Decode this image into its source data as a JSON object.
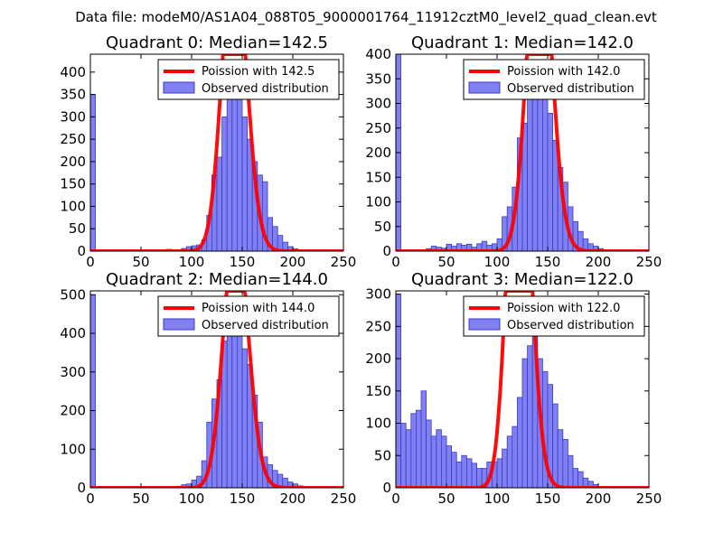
{
  "figure_title": "Data file: modeM0/AS1A04_088T05_9000001764_11912cztM0_level2_quad_clean.evt",
  "colors": {
    "bar_fill": "#8080f0",
    "bar_edge": "#3a3ad0",
    "model_line": "#ff0000"
  },
  "chart_data": [
    {
      "type": "bar",
      "title": "Quadrant 0: Median=142.5",
      "xlim": [
        0,
        250
      ],
      "ylim": [
        0,
        440
      ],
      "xticks": [
        0,
        50,
        100,
        150,
        200,
        250
      ],
      "yticks": [
        0,
        50,
        100,
        150,
        200,
        250,
        300,
        350,
        400
      ],
      "legend": {
        "placement": "top-right",
        "line_label": "Poission with 142.5",
        "bar_label": "Observed distribution"
      },
      "bin_width": 5,
      "bins": [
        [
          0,
          350
        ],
        [
          75,
          4
        ],
        [
          80,
          2
        ],
        [
          85,
          2
        ],
        [
          90,
          6
        ],
        [
          95,
          10
        ],
        [
          100,
          12
        ],
        [
          105,
          14
        ],
        [
          110,
          25
        ],
        [
          115,
          80
        ],
        [
          120,
          170
        ],
        [
          125,
          210
        ],
        [
          130,
          300
        ],
        [
          135,
          360
        ],
        [
          140,
          380
        ],
        [
          145,
          390
        ],
        [
          150,
          300
        ],
        [
          155,
          250
        ],
        [
          160,
          200
        ],
        [
          165,
          170
        ],
        [
          170,
          155
        ],
        [
          175,
          75
        ],
        [
          180,
          55
        ],
        [
          185,
          35
        ],
        [
          190,
          20
        ],
        [
          195,
          10
        ],
        [
          200,
          5
        ]
      ],
      "poisson_mean": 142.5,
      "poisson_total": 4100
    },
    {
      "type": "bar",
      "title": "Quadrant 1: Median=142.0",
      "xlim": [
        0,
        250
      ],
      "ylim": [
        0,
        400
      ],
      "xticks": [
        0,
        50,
        100,
        150,
        200,
        250
      ],
      "yticks": [
        0,
        50,
        100,
        150,
        200,
        250,
        300,
        350,
        400
      ],
      "legend": {
        "placement": "top-right",
        "line_label": "Poission with 142.0",
        "bar_label": "Observed distribution"
      },
      "bin_width": 5,
      "bins": [
        [
          0,
          400
        ],
        [
          30,
          5
        ],
        [
          35,
          10
        ],
        [
          40,
          8
        ],
        [
          45,
          6
        ],
        [
          50,
          14
        ],
        [
          55,
          10
        ],
        [
          60,
          15
        ],
        [
          65,
          12
        ],
        [
          70,
          14
        ],
        [
          75,
          8
        ],
        [
          80,
          15
        ],
        [
          85,
          20
        ],
        [
          90,
          12
        ],
        [
          95,
          15
        ],
        [
          100,
          25
        ],
        [
          105,
          70
        ],
        [
          110,
          90
        ],
        [
          115,
          130
        ],
        [
          120,
          230
        ],
        [
          125,
          260
        ],
        [
          130,
          340
        ],
        [
          135,
          360
        ],
        [
          140,
          380
        ],
        [
          145,
          350
        ],
        [
          150,
          280
        ],
        [
          155,
          225
        ],
        [
          160,
          170
        ],
        [
          165,
          140
        ],
        [
          170,
          90
        ],
        [
          175,
          60
        ],
        [
          180,
          40
        ],
        [
          185,
          25
        ],
        [
          190,
          15
        ],
        [
          195,
          10
        ],
        [
          200,
          5
        ]
      ],
      "poisson_mean": 142.0,
      "poisson_total": 4100
    },
    {
      "type": "bar",
      "title": "Quadrant 2: Median=144.0",
      "xlim": [
        0,
        250
      ],
      "ylim": [
        0,
        510
      ],
      "xticks": [
        0,
        50,
        100,
        150,
        200,
        250
      ],
      "yticks": [
        0,
        100,
        200,
        300,
        400,
        500
      ],
      "legend": {
        "placement": "top-right",
        "line_label": "Poission with 144.0",
        "bar_label": "Observed distribution"
      },
      "bin_width": 5,
      "bins": [
        [
          0,
          500
        ],
        [
          85,
          4
        ],
        [
          90,
          8
        ],
        [
          95,
          10
        ],
        [
          100,
          20
        ],
        [
          105,
          30
        ],
        [
          110,
          70
        ],
        [
          115,
          170
        ],
        [
          120,
          230
        ],
        [
          125,
          280
        ],
        [
          130,
          380
        ],
        [
          135,
          440
        ],
        [
          140,
          480
        ],
        [
          145,
          450
        ],
        [
          150,
          360
        ],
        [
          155,
          320
        ],
        [
          160,
          240
        ],
        [
          165,
          170
        ],
        [
          170,
          80
        ],
        [
          175,
          60
        ],
        [
          180,
          45
        ],
        [
          185,
          35
        ],
        [
          190,
          25
        ],
        [
          195,
          15
        ],
        [
          200,
          10
        ],
        [
          205,
          5
        ]
      ],
      "poisson_mean": 144.0,
      "poisson_total": 4100
    },
    {
      "type": "bar",
      "title": "Quadrant 3: Median=122.0",
      "xlim": [
        0,
        250
      ],
      "ylim": [
        0,
        305
      ],
      "xticks": [
        0,
        50,
        100,
        150,
        200,
        250
      ],
      "yticks": [
        0,
        50,
        100,
        150,
        200,
        250,
        300
      ],
      "legend": {
        "placement": "top-right",
        "line_label": "Poission with 122.0",
        "bar_label": "Observed distribution"
      },
      "bin_width": 5,
      "bins": [
        [
          0,
          300
        ],
        [
          5,
          100
        ],
        [
          10,
          90
        ],
        [
          15,
          115
        ],
        [
          20,
          120
        ],
        [
          25,
          150
        ],
        [
          30,
          105
        ],
        [
          35,
          80
        ],
        [
          40,
          90
        ],
        [
          45,
          80
        ],
        [
          50,
          65
        ],
        [
          55,
          55
        ],
        [
          60,
          40
        ],
        [
          65,
          50
        ],
        [
          70,
          45
        ],
        [
          75,
          38
        ],
        [
          80,
          30
        ],
        [
          85,
          30
        ],
        [
          90,
          40
        ],
        [
          95,
          40
        ],
        [
          100,
          45
        ],
        [
          105,
          60
        ],
        [
          110,
          80
        ],
        [
          115,
          95
        ],
        [
          120,
          140
        ],
        [
          125,
          200
        ],
        [
          130,
          220
        ],
        [
          135,
          250
        ],
        [
          140,
          200
        ],
        [
          145,
          180
        ],
        [
          150,
          160
        ],
        [
          155,
          130
        ],
        [
          160,
          90
        ],
        [
          165,
          75
        ],
        [
          170,
          50
        ],
        [
          175,
          30
        ],
        [
          180,
          25
        ],
        [
          185,
          15
        ],
        [
          190,
          10
        ],
        [
          195,
          5
        ]
      ],
      "poisson_mean": 122.0,
      "poisson_total": 3600
    }
  ]
}
